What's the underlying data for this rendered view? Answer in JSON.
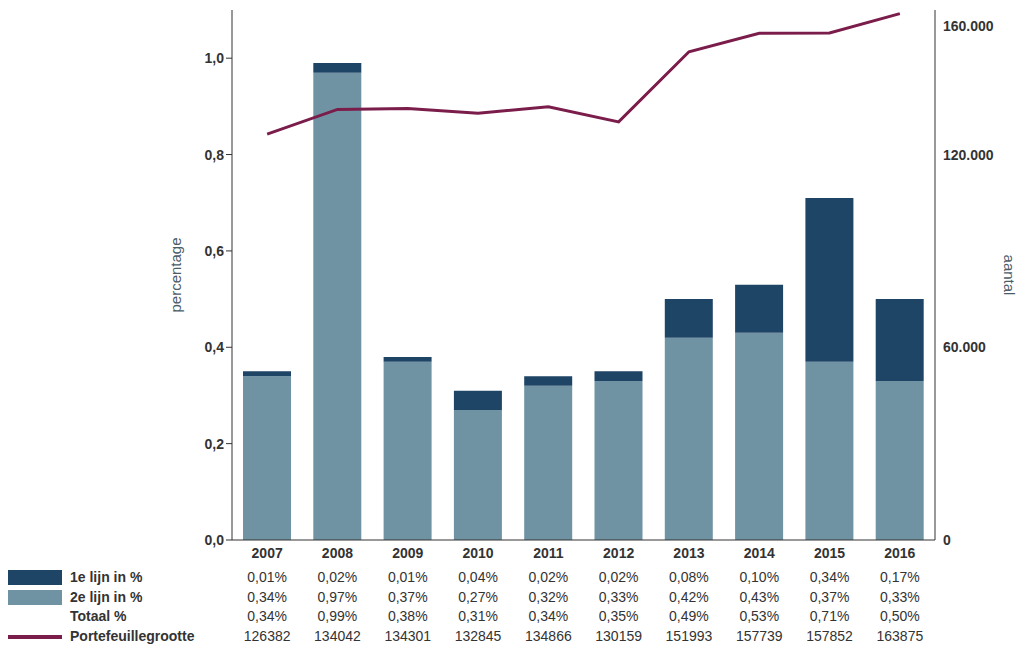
{
  "chart_data": {
    "type": "bar",
    "stacked": true,
    "categories": [
      "2007",
      "2008",
      "2009",
      "2010",
      "2011",
      "2012",
      "2013",
      "2014",
      "2015",
      "2016"
    ],
    "y_label": "percentage",
    "y2_label": "aantal",
    "ylim": [
      0,
      1.1
    ],
    "yticks": [
      {
        "value": 0,
        "label": "0,0"
      },
      {
        "value": 0.2,
        "label": "0,2"
      },
      {
        "value": 0.4,
        "label": "0,4"
      },
      {
        "value": 0.6,
        "label": "0,6"
      },
      {
        "value": 0.8,
        "label": "0,8"
      },
      {
        "value": 1,
        "label": "1,0"
      }
    ],
    "y2lim": [
      0,
      165000
    ],
    "y2ticks": [
      0,
      {
        "value": 60000,
        "label": "60.000"
      },
      {
        "value": 120000,
        "label": "120.000"
      },
      {
        "value": 160000,
        "label": "160.000"
      }
    ],
    "series": [
      {
        "name": "1e lijn in %",
        "type": "bar",
        "color": "#1f4566",
        "values": [
          0.01,
          0.02,
          0.01,
          0.04,
          0.02,
          0.02,
          0.08,
          0.1,
          0.34,
          0.17
        ],
        "value_labels": [
          "0,01%",
          "0,02%",
          "0,01%",
          "0,04%",
          "0,02%",
          "0,02%",
          "0,08%",
          "0,10%",
          "0,34%",
          "0,17%"
        ]
      },
      {
        "name": "2e lijn in %",
        "type": "bar",
        "color": "#6f93a3",
        "values": [
          0.34,
          0.97,
          0.37,
          0.27,
          0.32,
          0.33,
          0.42,
          0.43,
          0.37,
          0.33
        ],
        "value_labels": [
          "0,34%",
          "0,97%",
          "0,37%",
          "0,27%",
          "0,32%",
          "0,33%",
          "0,42%",
          "0,43%",
          "0,37%",
          "0,33%"
        ]
      },
      {
        "name": "Portefeuillegrootte",
        "type": "line",
        "axis": "y2",
        "color": "#7b1d4b",
        "values": [
          126382,
          134042,
          134301,
          132845,
          134866,
          130159,
          151993,
          157739,
          157852,
          163875
        ]
      }
    ],
    "totals": {
      "name": "Totaal %",
      "values": [
        0.34,
        0.99,
        0.38,
        0.31,
        0.34,
        0.35,
        0.49,
        0.53,
        0.71,
        0.5
      ],
      "value_labels": [
        "0,34%",
        "0,99%",
        "0,38%",
        "0,31%",
        "0,34%",
        "0,35%",
        "0,49%",
        "0,53%",
        "0,71%",
        "0,50%"
      ]
    }
  }
}
